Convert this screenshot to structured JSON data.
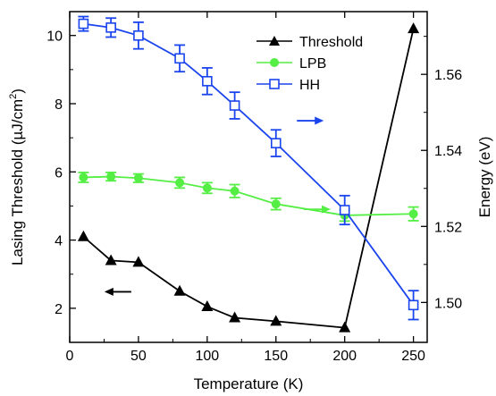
{
  "chart_data": {
    "type": "line",
    "xlabel": "Temperature (K)",
    "ylabel_left": {
      "main": "Lasing Threshold (µJ/cm",
      "sup": "2",
      "close": ")"
    },
    "ylabel_right": "Energy (eV)",
    "xlim": [
      0,
      260
    ],
    "ylim_left": [
      1.0,
      10.7
    ],
    "ylim_right": [
      1.4895,
      1.5765
    ],
    "xticks": [
      0,
      50,
      100,
      150,
      200,
      250
    ],
    "yticks_left": [
      2,
      4,
      6,
      8,
      10
    ],
    "yticks_right": [
      1.5,
      1.52,
      1.54,
      1.56
    ],
    "xtick_labels": [
      "0",
      "50",
      "100",
      "150",
      "200",
      "250"
    ],
    "yticks_left_labels": [
      "2",
      "4",
      "6",
      "8",
      "10"
    ],
    "yticks_right_labels": [
      "1.50",
      "1.52",
      "1.54",
      "1.56"
    ],
    "legend_position": "top-right",
    "series": [
      {
        "name": "Threshold",
        "axis": "left",
        "marker": "triangle",
        "color": "#000000",
        "x": [
          10,
          30,
          50,
          80,
          100,
          120,
          150,
          200,
          250
        ],
        "y": [
          4.1,
          3.4,
          3.35,
          2.5,
          2.05,
          1.72,
          1.62,
          1.43,
          10.2
        ]
      },
      {
        "name": "LPB",
        "axis": "right",
        "marker": "circle",
        "color": "#55ee44",
        "x": [
          10,
          30,
          50,
          80,
          100,
          120,
          150,
          200,
          250
        ],
        "y": [
          1.5329,
          1.5331,
          1.5327,
          1.5315,
          1.5301,
          1.5293,
          1.5259,
          1.5229,
          1.5233
        ],
        "err": [
          0.0013,
          0.0011,
          0.0011,
          0.0014,
          0.0014,
          0.0017,
          0.0015,
          0.0015,
          0.0018
        ]
      },
      {
        "name": "HH",
        "axis": "right",
        "marker": "square-open",
        "color": "#1a44ee",
        "x": [
          10,
          30,
          50,
          80,
          100,
          120,
          150,
          200,
          250
        ],
        "y": [
          1.5733,
          1.5723,
          1.5702,
          1.5642,
          1.5582,
          1.5518,
          1.5419,
          1.5243,
          1.4993
        ],
        "err": [
          0.0019,
          0.0025,
          0.0035,
          0.0035,
          0.0035,
          0.0035,
          0.0035,
          0.0038,
          0.0038
        ]
      }
    ],
    "annotations": [
      {
        "type": "arrow",
        "direction": "left",
        "color": "#000000",
        "x": 35,
        "y_right": 1.5028
      },
      {
        "type": "arrow",
        "direction": "right",
        "color": "#55ee44",
        "x": 180,
        "y_right": 1.5245
      },
      {
        "type": "arrow",
        "direction": "right",
        "color": "#1a44ee",
        "x": 175,
        "y_right": 1.5478
      }
    ]
  }
}
